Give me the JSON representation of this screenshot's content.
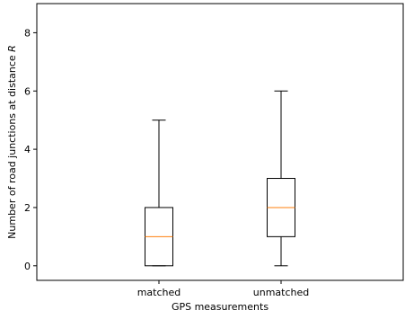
{
  "chart_data": {
    "type": "box",
    "title": "",
    "xlabel": "GPS measurements",
    "ylabel": "Number of road junctions at distance R",
    "categories": [
      "matched",
      "unmatched"
    ],
    "boxes": [
      {
        "category": "matched",
        "whisker_low": 0,
        "q1": 0,
        "median": 1,
        "q3": 2,
        "whisker_high": 5
      },
      {
        "category": "unmatched",
        "whisker_low": 0,
        "q1": 1,
        "median": 2,
        "q3": 3,
        "whisker_high": 6
      }
    ],
    "ylim": [
      -0.5,
      9
    ],
    "yticks": [
      0,
      2,
      4,
      6,
      8
    ],
    "grid": false,
    "colors": {
      "box": "#000000",
      "median": "#ff7f0e",
      "background": "#ffffff"
    }
  }
}
